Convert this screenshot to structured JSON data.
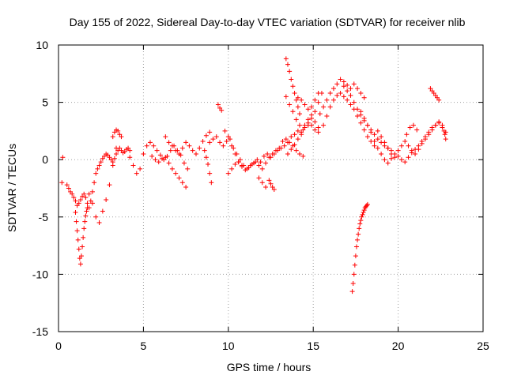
{
  "chart_data": {
    "type": "scatter",
    "title": "Day 155 of 2022, Sidereal Day-to-day VTEC variation (SDTVAR) for receiver nlib",
    "xlabel": "GPS time / hours",
    "ylabel": "SDTVAR / TECUs",
    "xlim": [
      0,
      25
    ],
    "ylim": [
      -15,
      10
    ],
    "xticks": [
      "0",
      "5",
      "10",
      "15",
      "20",
      "25"
    ],
    "yticks": [
      "10",
      "5",
      "0",
      "-5",
      "-10",
      "-15"
    ],
    "grid": true,
    "marker": "+",
    "color": "#ff0000",
    "series": [
      {
        "name": "SDTVAR",
        "x": [
          0.2,
          0.25
        ],
        "y": [
          -2.0,
          0.2
        ]
      },
      {
        "name": "SDTVAR",
        "x": [
          0.5,
          0.6,
          0.7,
          0.8,
          0.9,
          1.0,
          1.1,
          1.2,
          1.3,
          1.4,
          1.5,
          1.6,
          1.7,
          1.8,
          1.9,
          2.0,
          2.1,
          2.2,
          2.3,
          2.4,
          2.5,
          2.6,
          2.7,
          2.8,
          2.9,
          3.0,
          3.1,
          3.2,
          3.3,
          3.4,
          3.5,
          3.6,
          3.7,
          3.8,
          3.9,
          4.0,
          4.1,
          4.2
        ],
        "y": [
          -2.2,
          -2.5,
          -2.8,
          -3.0,
          -3.3,
          -3.6,
          -4.0,
          -3.8,
          -3.5,
          -3.2,
          -3.0,
          -3.3,
          -3.8,
          -4.2,
          -3.6,
          -2.8,
          -2.0,
          -1.2,
          -0.8,
          -0.5,
          -0.2,
          0.1,
          0.3,
          0.5,
          0.4,
          0.2,
          0.0,
          -0.2,
          0.1,
          0.5,
          0.8,
          1.0,
          0.8,
          0.6,
          0.7,
          0.9,
          1.0,
          0.8
        ]
      },
      {
        "name": "SDTVAR",
        "x": [
          1.0,
          1.05,
          1.1,
          1.15,
          1.2,
          1.25,
          1.3,
          1.35,
          1.4,
          1.45,
          1.5,
          1.55,
          1.6,
          1.65,
          1.7
        ],
        "y": [
          -4.6,
          -5.4,
          -6.2,
          -7.0,
          -7.8,
          -8.6,
          -9.1,
          -8.4,
          -7.6,
          -6.8,
          -6.0,
          -5.4,
          -4.9,
          -4.5,
          -4.2
        ]
      },
      {
        "name": "SDTVAR",
        "x": [
          1.8,
          2.0,
          2.2,
          2.4,
          2.6,
          2.8,
          3.0,
          3.2,
          3.4
        ],
        "y": [
          -3.0,
          -3.8,
          -5.0,
          -5.5,
          -4.5,
          -3.5,
          -2.2,
          -0.5,
          1.0
        ]
      },
      {
        "name": "SDTVAR",
        "x": [
          3.2,
          3.3,
          3.4,
          3.5,
          3.6,
          3.7
        ],
        "y": [
          2.0,
          2.4,
          2.6,
          2.5,
          2.2,
          2.0
        ]
      },
      {
        "name": "SDTVAR",
        "x": [
          4.2,
          4.4,
          4.6,
          4.8,
          5.0,
          5.2,
          5.4,
          5.6,
          5.8,
          6.0,
          6.2,
          6.4,
          6.6,
          6.8,
          7.0,
          7.2,
          7.4,
          7.6
        ],
        "y": [
          0.2,
          -0.5,
          -1.2,
          -0.8,
          0.5,
          1.2,
          1.5,
          1.2,
          0.8,
          0.4,
          0.0,
          0.3,
          0.8,
          1.2,
          0.8,
          0.4,
          -0.3,
          -0.8
        ]
      },
      {
        "name": "SDTVAR",
        "x": [
          5.5,
          5.7,
          5.9,
          6.1,
          6.3,
          6.5,
          6.7,
          6.9,
          7.1,
          7.3,
          7.5
        ],
        "y": [
          0.3,
          0.0,
          -0.2,
          0.1,
          0.2,
          -0.3,
          -0.8,
          -1.2,
          -1.6,
          -2.0,
          -2.4
        ]
      },
      {
        "name": "SDTVAR",
        "x": [
          6.3,
          6.5,
          6.7,
          6.9,
          7.1,
          7.3,
          7.5,
          7.7,
          7.9,
          8.1,
          8.3,
          8.5,
          8.7,
          8.9
        ],
        "y": [
          2.0,
          1.5,
          1.2,
          0.8,
          0.5,
          1.0,
          1.5,
          1.2,
          0.8,
          0.5,
          1.0,
          1.6,
          2.1,
          2.4
        ]
      },
      {
        "name": "SDTVAR",
        "x": [
          8.6,
          8.7,
          8.8,
          8.9,
          9.0
        ],
        "y": [
          0.8,
          0.2,
          -0.4,
          -1.2,
          -2.0
        ]
      },
      {
        "name": "SDTVAR",
        "x": [
          9.4,
          9.5,
          9.6
        ],
        "y": [
          4.8,
          4.5,
          4.3
        ]
      },
      {
        "name": "SDTVAR",
        "x": [
          8.9,
          9.1,
          9.3,
          9.5,
          9.7,
          9.9,
          10.1,
          10.3,
          10.5,
          10.7,
          10.9,
          11.1,
          11.3,
          11.5,
          11.7,
          11.9,
          12.1,
          12.3,
          12.5,
          12.7,
          12.9,
          13.1,
          13.3,
          13.5,
          13.7,
          13.9,
          14.1,
          14.3,
          14.5,
          14.7,
          14.9,
          15.1,
          15.3
        ],
        "y": [
          1.5,
          1.8,
          2.0,
          1.5,
          1.2,
          1.6,
          1.8,
          1.0,
          0.5,
          0.0,
          -0.5,
          -0.8,
          -0.5,
          -0.3,
          0.0,
          -0.2,
          0.3,
          0.5,
          0.2,
          0.5,
          0.8,
          1.0,
          1.2,
          1.5,
          2.0,
          2.2,
          2.5,
          2.2,
          2.8,
          3.2,
          3.0,
          2.6,
          2.4
        ]
      },
      {
        "name": "SDTVAR",
        "x": [
          9.8,
          10.0,
          10.2,
          10.4,
          10.6,
          10.8,
          11.0,
          11.2,
          11.4,
          11.6,
          11.8,
          12.0,
          12.2,
          12.4,
          12.6,
          12.8,
          13.0,
          13.2,
          13.4,
          13.6,
          13.8,
          14.0,
          14.2,
          14.4
        ],
        "y": [
          2.5,
          2.0,
          1.2,
          0.5,
          -0.2,
          -0.6,
          -0.9,
          -0.7,
          -0.4,
          -0.2,
          -0.5,
          -0.8,
          -0.3,
          0.2,
          0.5,
          0.8,
          1.0,
          1.6,
          1.8,
          1.5,
          1.2,
          0.8,
          0.5,
          0.3
        ]
      },
      {
        "name": "SDTVAR",
        "x": [
          10.0,
          10.2,
          10.4,
          10.6,
          10.8
        ],
        "y": [
          -1.2,
          -0.8,
          -0.4,
          -0.2,
          -0.5
        ]
      },
      {
        "name": "SDTVAR",
        "x": [
          11.8,
          12.0,
          12.2
        ],
        "y": [
          -1.6,
          -2.0,
          -2.4
        ]
      },
      {
        "name": "SDTVAR",
        "x": [
          12.4,
          12.5,
          12.6,
          12.7
        ],
        "y": [
          -1.8,
          -2.1,
          -2.4,
          -2.6
        ]
      },
      {
        "name": "SDTVAR",
        "x": [
          13.4,
          13.5,
          13.6,
          13.7,
          13.8,
          13.9,
          14.0,
          14.1,
          14.2
        ],
        "y": [
          8.8,
          8.3,
          7.7,
          7.0,
          6.4,
          5.8,
          5.2,
          4.6,
          4.0
        ]
      },
      {
        "name": "SDTVAR",
        "x": [
          13.4,
          13.6,
          13.8,
          14.0,
          14.2,
          14.4
        ],
        "y": [
          5.5,
          4.8,
          4.2,
          3.5,
          3.0,
          2.6
        ]
      },
      {
        "name": "SDTVAR",
        "x": [
          13.5,
          13.7,
          13.9,
          14.1,
          14.3,
          14.5,
          14.7,
          14.9,
          15.1,
          15.3
        ],
        "y": [
          0.5,
          0.9,
          1.3,
          1.8,
          2.4,
          3.0,
          3.5,
          3.9,
          3.3,
          2.8
        ]
      },
      {
        "name": "SDTVAR",
        "x": [
          14.1,
          14.3,
          14.5,
          14.7,
          14.9,
          15.1,
          15.3
        ],
        "y": [
          5.4,
          5.2,
          4.8,
          4.4,
          4.6,
          5.2,
          5.8
        ]
      },
      {
        "name": "SDTVAR",
        "x": [
          14.7,
          14.9,
          15.1,
          15.3,
          15.5
        ],
        "y": [
          3.0,
          3.6,
          4.2,
          5.0,
          5.8
        ]
      },
      {
        "name": "SDTVAR",
        "x": [
          15.4,
          15.6,
          15.8,
          16.0,
          16.2,
          16.4,
          16.6,
          16.8,
          17.0,
          17.2,
          17.4,
          17.6,
          17.8,
          18.0
        ],
        "y": [
          4.0,
          4.6,
          5.2,
          5.8,
          6.2,
          6.6,
          7.0,
          6.8,
          6.5,
          6.2,
          6.6,
          6.2,
          5.8,
          5.4
        ]
      },
      {
        "name": "SDTVAR",
        "x": [
          15.6,
          15.8,
          16.0,
          16.2,
          16.4,
          16.6,
          16.8,
          17.0,
          17.2,
          17.4,
          17.6,
          17.8,
          18.0,
          18.2,
          18.4,
          18.6
        ],
        "y": [
          3.0,
          3.8,
          4.6,
          5.2,
          5.6,
          5.8,
          5.5,
          5.2,
          4.8,
          4.4,
          3.8,
          3.2,
          2.6,
          2.0,
          1.6,
          1.2
        ]
      },
      {
        "name": "SDTVAR",
        "x": [
          16.8,
          17.0,
          17.2,
          17.4,
          17.6,
          17.8,
          18.0,
          18.2,
          18.4,
          18.6,
          18.8,
          19.0,
          19.2,
          19.4,
          19.6
        ],
        "y": [
          6.4,
          6.0,
          5.6,
          5.0,
          4.4,
          3.9,
          3.4,
          3.0,
          2.6,
          2.2,
          1.8,
          1.5,
          1.2,
          1.0,
          0.8
        ]
      },
      {
        "name": "SDTVAR",
        "x": [
          17.3,
          17.35,
          17.4,
          17.45,
          17.5,
          17.55,
          17.6,
          17.65,
          17.7,
          17.75,
          17.8,
          17.85,
          17.9,
          17.95,
          18.0,
          18.05,
          18.1,
          18.15,
          18.2
        ],
        "y": [
          -11.5,
          -10.8,
          -10.0,
          -9.2,
          -8.4,
          -7.6,
          -7.0,
          -6.5,
          -6.0,
          -5.6,
          -5.3,
          -5.0,
          -4.8,
          -4.6,
          -4.4,
          -4.2,
          -4.1,
          -4.0,
          -3.9
        ]
      },
      {
        "name": "SDTVAR",
        "x": [
          17.8,
          18.0,
          18.2,
          18.4,
          18.6,
          18.8,
          19.0,
          19.2,
          19.4,
          19.6,
          19.8,
          20.0,
          20.2,
          20.4,
          20.6,
          20.8,
          21.0,
          21.2,
          21.4,
          21.6,
          21.8,
          22.0,
          22.2,
          22.4,
          22.6,
          22.8
        ],
        "y": [
          4.2,
          3.6,
          3.0,
          2.4,
          1.6,
          1.0,
          0.5,
          0.0,
          -0.3,
          0.1,
          0.5,
          0.3,
          0.0,
          -0.2,
          0.2,
          0.6,
          0.9,
          1.2,
          1.6,
          2.0,
          2.4,
          2.8,
          3.0,
          3.2,
          2.8,
          2.4
        ]
      },
      {
        "name": "SDTVAR",
        "x": [
          18.8,
          19.0,
          19.2,
          19.4,
          19.6,
          19.8,
          20.0,
          20.2,
          20.4,
          20.6,
          20.8,
          21.0,
          21.2,
          21.4,
          21.6,
          21.8,
          22.0,
          22.2,
          22.4,
          22.6
        ],
        "y": [
          2.5,
          2.0,
          1.5,
          1.0,
          0.5,
          0.2,
          0.8,
          1.2,
          1.6,
          1.2,
          0.8,
          0.5,
          0.9,
          1.4,
          1.8,
          2.2,
          2.6,
          3.0,
          3.3,
          3.0
        ]
      },
      {
        "name": "SDTVAR",
        "x": [
          20.5,
          20.7,
          20.9,
          21.1
        ],
        "y": [
          2.2,
          2.8,
          3.0,
          2.6
        ]
      },
      {
        "name": "SDTVAR",
        "x": [
          21.9,
          22.0,
          22.1,
          22.2,
          22.3,
          22.4
        ],
        "y": [
          6.2,
          6.0,
          5.8,
          5.6,
          5.4,
          5.2
        ]
      },
      {
        "name": "SDTVAR",
        "x": [
          22.7,
          22.75,
          22.8
        ],
        "y": [
          2.5,
          2.2,
          1.8
        ]
      }
    ]
  }
}
